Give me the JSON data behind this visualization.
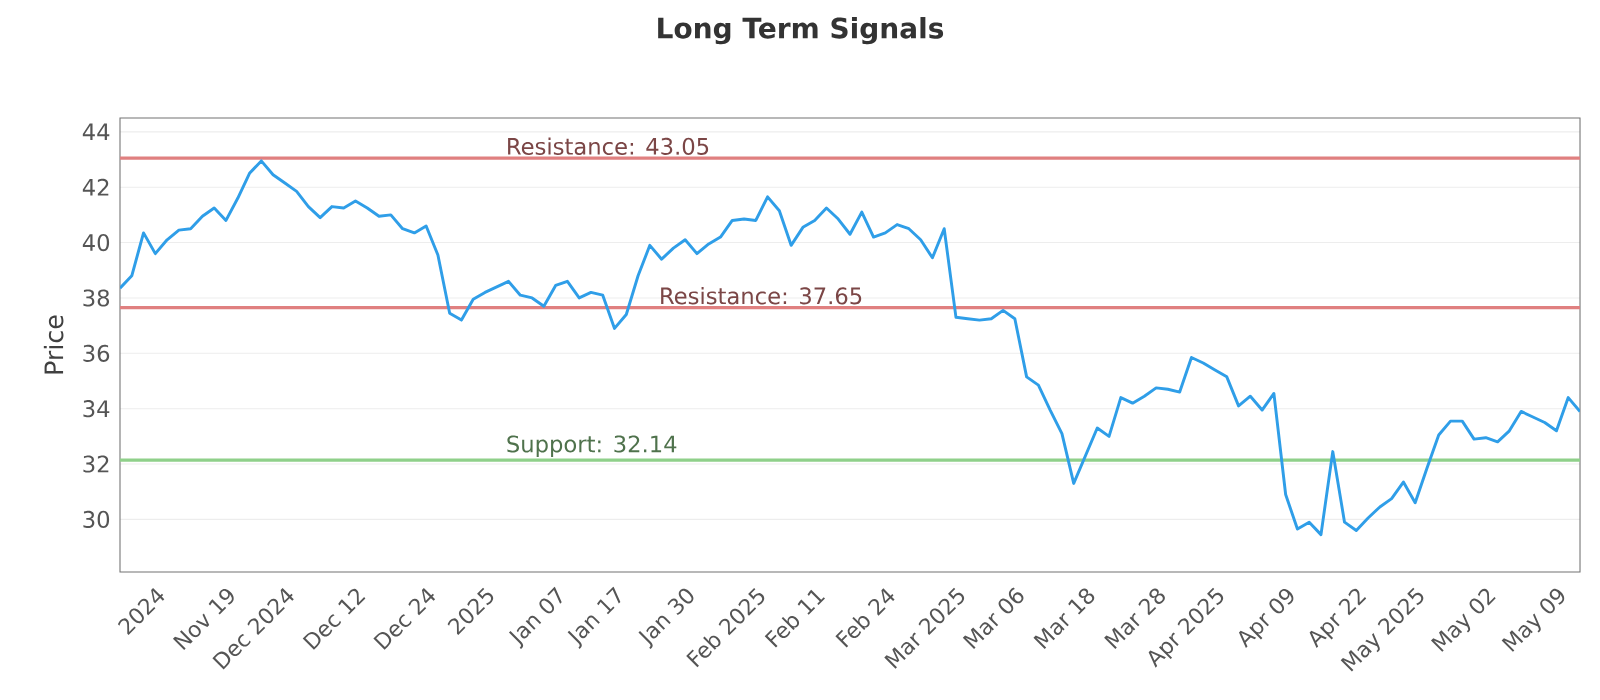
{
  "chart_data": {
    "type": "line",
    "title": "Long Term Signals",
    "ylabel": "Price",
    "categories": [
      null,
      null,
      null,
      "2024",
      null,
      null,
      null,
      null,
      null,
      "Nov 19",
      null,
      null,
      null,
      null,
      "Dec 2024",
      null,
      null,
      null,
      null,
      null,
      "Dec 12",
      null,
      null,
      null,
      null,
      null,
      "Dec 24",
      null,
      null,
      null,
      null,
      "2025",
      null,
      null,
      null,
      null,
      null,
      "Jan 07",
      null,
      null,
      null,
      null,
      "Jan 17",
      null,
      null,
      null,
      null,
      null,
      "Jan 30",
      null,
      null,
      null,
      null,
      null,
      "Feb 2025",
      null,
      null,
      null,
      null,
      "Feb 11",
      null,
      null,
      null,
      null,
      null,
      "Feb 24",
      null,
      null,
      null,
      null,
      null,
      "Mar 2025",
      null,
      null,
      null,
      null,
      "Mar 06",
      null,
      null,
      null,
      null,
      null,
      "Mar 18",
      null,
      null,
      null,
      null,
      null,
      "Mar 28",
      null,
      null,
      null,
      null,
      "Apr 2025",
      null,
      null,
      null,
      null,
      null,
      "Apr 09",
      null,
      null,
      null,
      null,
      null,
      "Apr 22",
      null,
      null,
      null,
      null,
      "May 2025",
      null,
      null,
      null,
      null,
      null,
      "May 02",
      null,
      null,
      null,
      null,
      null,
      "May 09",
      null,
      null
    ],
    "series": [
      {
        "color": "#2f9ee8",
        "values": [
          38.35,
          38.8,
          40.35,
          39.6,
          40.1,
          40.45,
          40.5,
          40.95,
          41.25,
          40.8,
          41.6,
          42.5,
          42.95,
          42.45,
          42.15,
          41.85,
          41.3,
          40.9,
          41.3,
          41.25,
          41.5,
          41.25,
          40.95,
          41.0,
          40.5,
          40.35,
          40.6,
          39.55,
          37.45,
          37.2,
          37.95,
          38.2,
          38.4,
          38.6,
          38.1,
          38.0,
          37.7,
          38.45,
          38.6,
          38.0,
          38.2,
          38.1,
          36.9,
          37.4,
          38.8,
          39.9,
          39.4,
          39.8,
          40.1,
          39.6,
          39.95,
          40.2,
          40.8,
          40.85,
          40.8,
          41.65,
          41.15,
          39.9,
          40.55,
          40.8,
          41.25,
          40.85,
          40.3,
          41.1,
          40.2,
          40.35,
          40.65,
          40.5,
          40.1,
          39.45,
          40.5,
          37.3,
          37.25,
          37.2,
          37.25,
          37.55,
          37.25,
          35.15,
          34.85,
          33.95,
          33.1,
          31.3,
          32.3,
          33.3,
          33.0,
          34.4,
          34.2,
          34.45,
          34.75,
          34.7,
          34.6,
          35.85,
          35.65,
          35.4,
          35.15,
          34.1,
          34.45,
          33.95,
          34.55,
          30.9,
          29.65,
          29.9,
          29.45,
          32.45,
          29.9,
          29.6,
          30.05,
          30.45,
          30.75,
          31.35,
          30.6,
          31.85,
          33.05,
          33.55,
          33.55,
          32.9,
          32.95,
          32.8,
          33.2,
          33.9,
          33.7,
          33.5,
          33.2,
          34.4,
          33.9
        ]
      }
    ],
    "ylim": [
      28.1,
      44.5
    ],
    "yticks": [
      30,
      32,
      34,
      36,
      38,
      40,
      42,
      44
    ],
    "grid": "y",
    "ref_lines": [
      {
        "axis": "y",
        "value": 43.05,
        "label": "Resistance: 43.05",
        "color": "#e08080"
      },
      {
        "axis": "y",
        "value": 37.65,
        "label": "Resistance: 37.65",
        "color": "#e08080"
      },
      {
        "axis": "y",
        "value": 32.14,
        "label": "Support: 32.14",
        "color": "#8fd08a"
      }
    ]
  }
}
